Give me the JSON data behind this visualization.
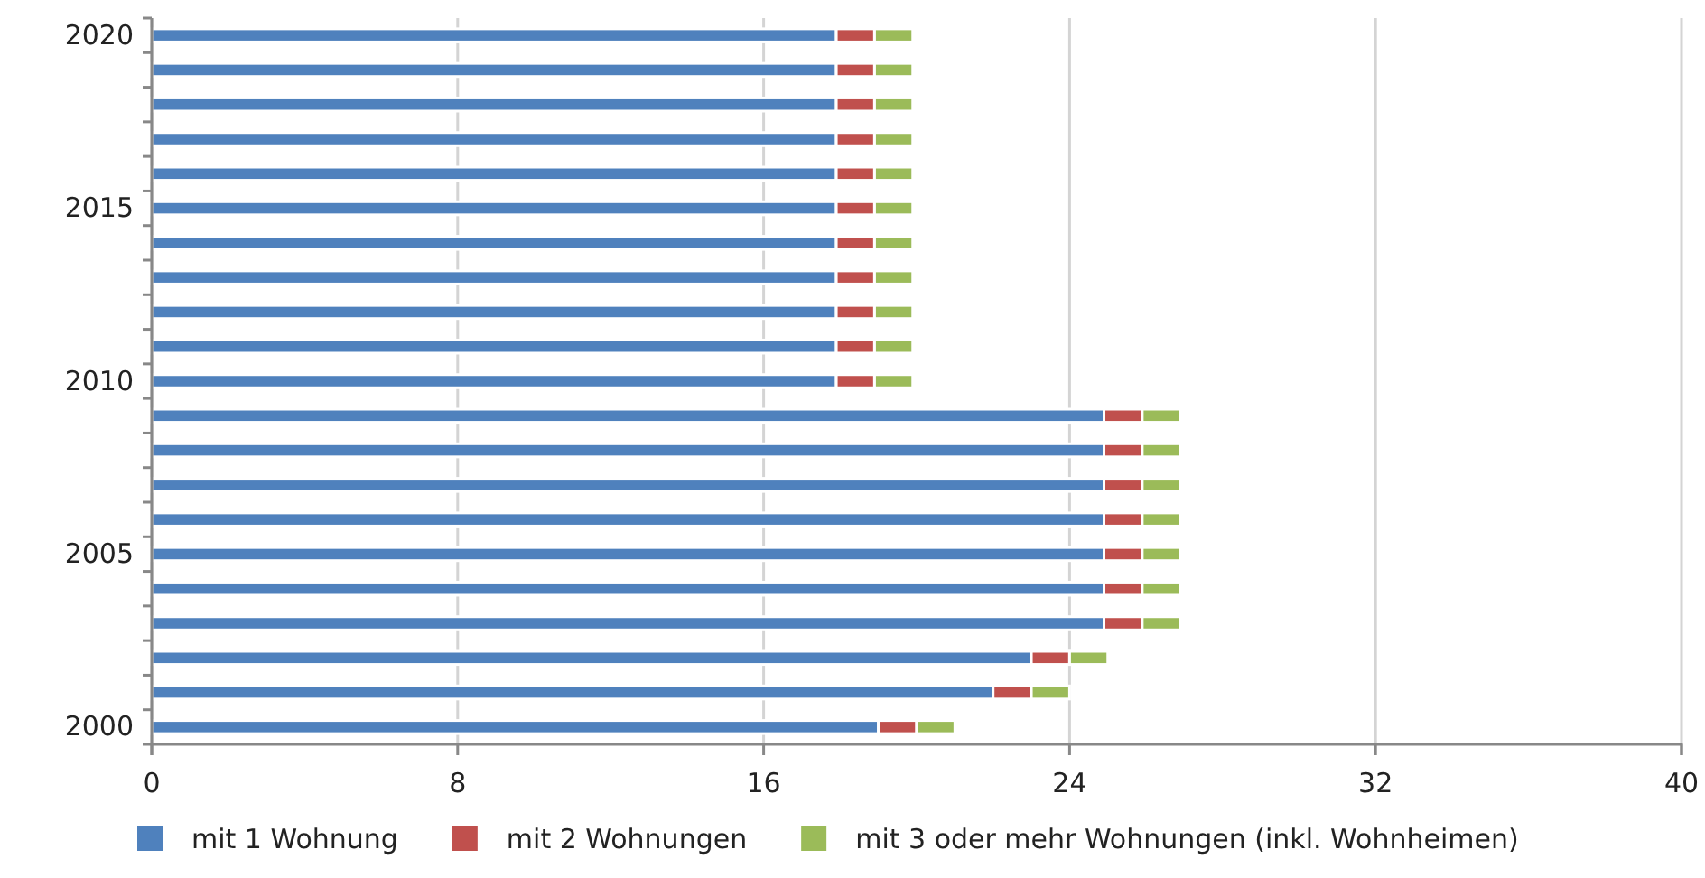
{
  "chart_data": {
    "type": "bar",
    "orientation": "horizontal",
    "stacked": true,
    "categories": [
      "2020",
      null,
      null,
      null,
      null,
      "2015",
      null,
      null,
      null,
      null,
      "2010",
      null,
      null,
      null,
      null,
      "2005",
      null,
      null,
      null,
      null,
      "2000"
    ],
    "series": [
      {
        "name": "mit 1 Wohnung",
        "color": "#4f81bd",
        "values": [
          17.9,
          17.9,
          17.9,
          17.9,
          17.9,
          17.9,
          17.9,
          17.9,
          17.9,
          17.9,
          17.9,
          24.9,
          24.9,
          24.9,
          24.9,
          24.9,
          24.9,
          24.9,
          23,
          22,
          19
        ]
      },
      {
        "name": "mit 2 Wohnungen",
        "color": "#c0504d",
        "values": [
          1,
          1,
          1,
          1,
          1,
          1,
          1,
          1,
          1,
          1,
          1,
          1,
          1,
          1,
          1,
          1,
          1,
          1,
          1,
          1,
          1
        ]
      },
      {
        "name": "mit 3 oder mehr Wohnungen (inkl. Wohnheimen)",
        "color": "#9bbb59",
        "values": [
          1,
          1,
          1,
          1,
          1,
          1,
          1,
          1,
          1,
          1,
          1,
          1,
          1,
          1,
          1,
          1,
          1,
          1,
          1,
          1,
          1
        ]
      }
    ],
    "xlim": [
      0,
      40
    ],
    "xticks": [
      0,
      8,
      16,
      24,
      32,
      40
    ],
    "grid": "x",
    "legend": "bottom"
  }
}
